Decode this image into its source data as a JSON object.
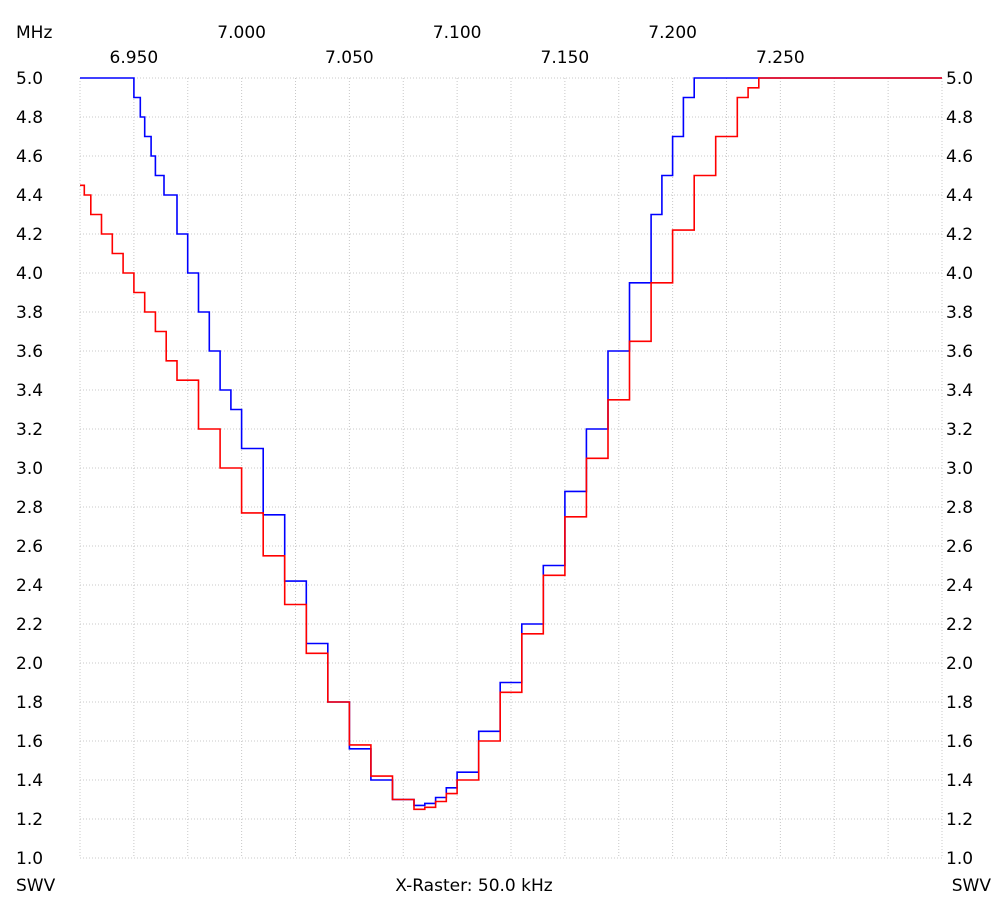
{
  "chart_data": {
    "type": "line",
    "x_unit_label": "MHz",
    "x_ticks_upper": [
      "7.000",
      "7.100",
      "7.200"
    ],
    "x_ticks_lower": [
      "6.950",
      "7.050",
      "7.150",
      "7.250"
    ],
    "xlim": [
      6.925,
      7.325
    ],
    "ylim": [
      1.0,
      5.0
    ],
    "y_ticks": [
      "5.0",
      "4.8",
      "4.6",
      "4.4",
      "4.2",
      "4.0",
      "3.8",
      "3.6",
      "3.4",
      "3.2",
      "3.0",
      "2.8",
      "2.6",
      "2.4",
      "2.2",
      "2.0",
      "1.8",
      "1.6",
      "1.4",
      "1.2",
      "1.0"
    ],
    "y_label_left": "SWV",
    "y_label_right": "SWV",
    "x_raster_label": "X-Raster: 50.0 kHz",
    "grid": true,
    "series": [
      {
        "color": "#0000ff",
        "x": [
          6.925,
          6.949,
          6.95,
          6.953,
          6.955,
          6.958,
          6.96,
          6.964,
          6.97,
          6.975,
          6.98,
          6.985,
          6.99,
          6.995,
          7.0,
          7.01,
          7.02,
          7.03,
          7.04,
          7.05,
          7.06,
          7.07,
          7.08,
          7.085,
          7.09,
          7.095,
          7.1,
          7.11,
          7.12,
          7.13,
          7.14,
          7.15,
          7.16,
          7.17,
          7.18,
          7.19,
          7.195,
          7.2,
          7.205,
          7.21,
          7.215,
          7.325
        ],
        "y": [
          5.0,
          5.0,
          4.9,
          4.8,
          4.7,
          4.6,
          4.5,
          4.4,
          4.2,
          4.0,
          3.8,
          3.6,
          3.4,
          3.3,
          3.1,
          2.76,
          2.42,
          2.1,
          1.8,
          1.56,
          1.4,
          1.3,
          1.27,
          1.28,
          1.31,
          1.36,
          1.44,
          1.65,
          1.9,
          2.2,
          2.5,
          2.88,
          3.2,
          3.6,
          3.95,
          4.3,
          4.5,
          4.7,
          4.9,
          5.0,
          5.0,
          5.0
        ]
      },
      {
        "color": "#ff0000",
        "x": [
          6.925,
          6.927,
          6.93,
          6.935,
          6.94,
          6.945,
          6.95,
          6.955,
          6.96,
          6.965,
          6.97,
          6.98,
          6.99,
          7.0,
          7.01,
          7.02,
          7.03,
          7.04,
          7.05,
          7.06,
          7.07,
          7.08,
          7.085,
          7.09,
          7.095,
          7.1,
          7.11,
          7.12,
          7.13,
          7.14,
          7.15,
          7.16,
          7.17,
          7.18,
          7.19,
          7.2,
          7.21,
          7.22,
          7.23,
          7.235,
          7.24,
          7.245,
          7.25,
          7.255,
          7.325
        ],
        "y": [
          4.45,
          4.4,
          4.3,
          4.2,
          4.1,
          4.0,
          3.9,
          3.8,
          3.7,
          3.55,
          3.45,
          3.2,
          3.0,
          2.77,
          2.55,
          2.3,
          2.05,
          1.8,
          1.58,
          1.42,
          1.3,
          1.25,
          1.26,
          1.29,
          1.33,
          1.4,
          1.6,
          1.85,
          2.15,
          2.45,
          2.75,
          3.05,
          3.35,
          3.65,
          3.95,
          4.22,
          4.5,
          4.7,
          4.9,
          4.95,
          5.0,
          5.0,
          5.0,
          5.0,
          5.0
        ]
      }
    ]
  }
}
